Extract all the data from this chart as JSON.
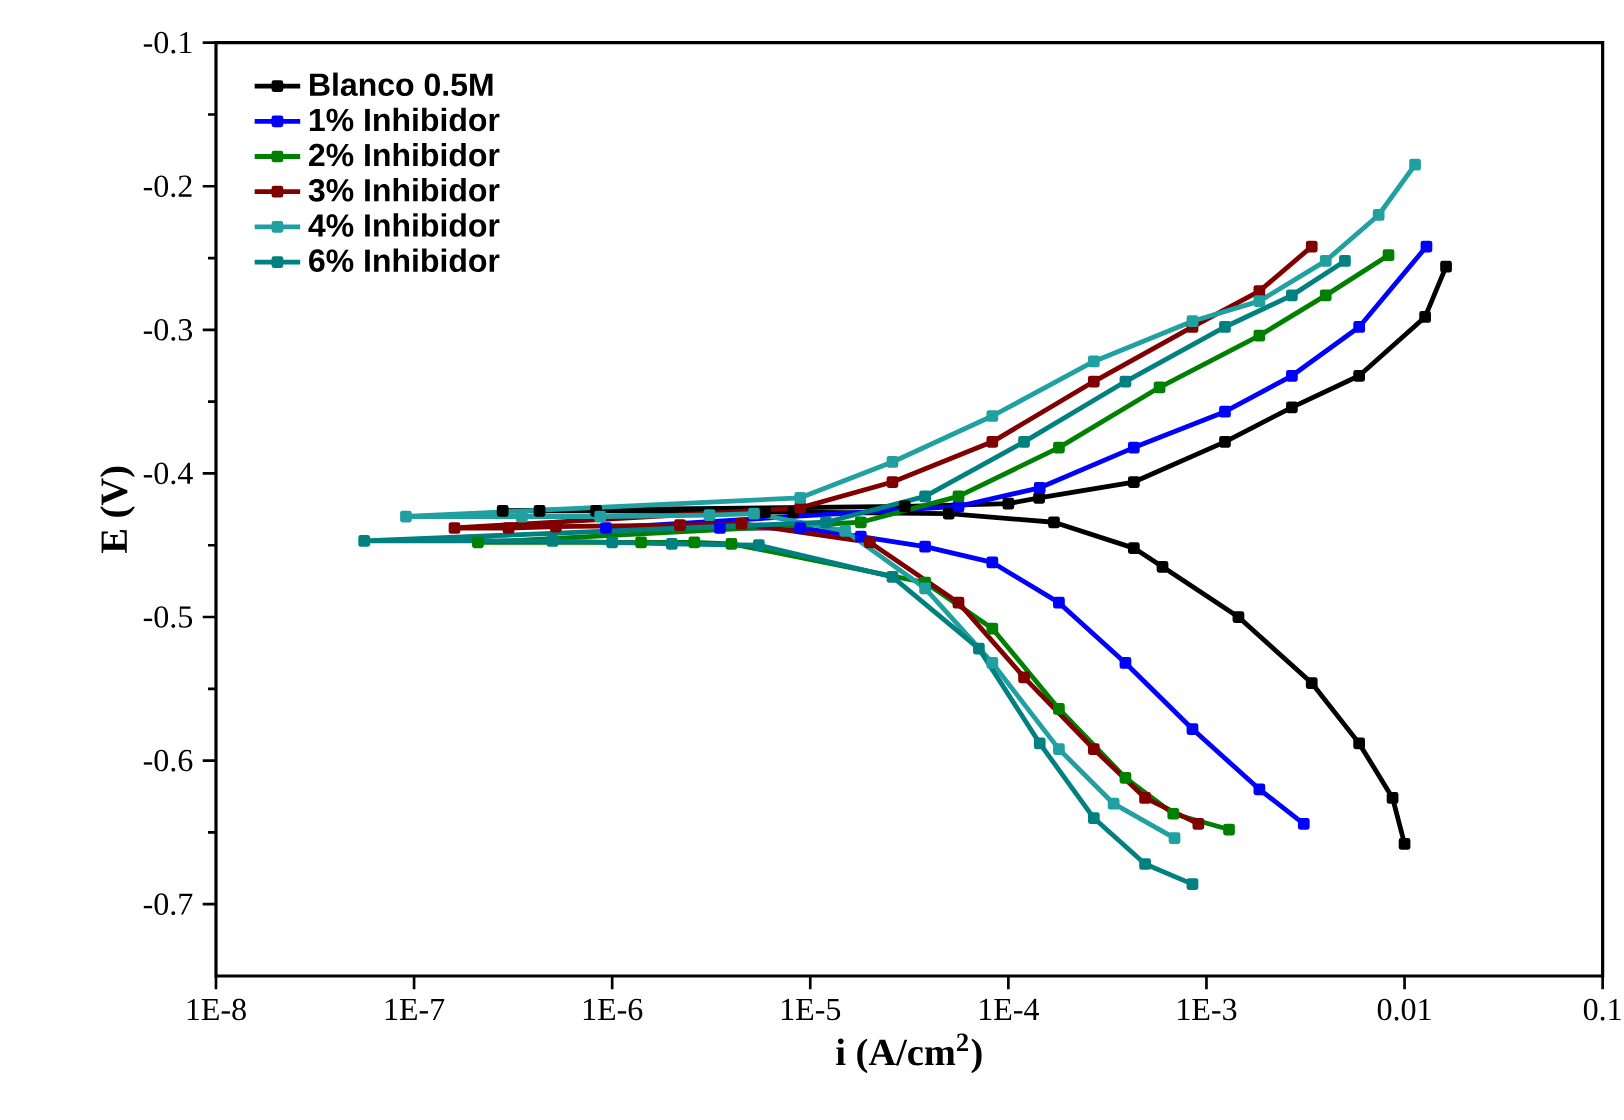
{
  "chart_data": {
    "type": "line",
    "xlabel": "i (A/cm$^{2}$)",
    "ylabel": "E (V)",
    "log": "x",
    "marker": "square",
    "line_style": "solid",
    "legend": "top left",
    "grid": false,
    "xlim": [
      1e-08,
      0.1
    ],
    "ylim": [
      -0.75,
      -0.1
    ],
    "xticks": [
      {
        "value": 1e-08,
        "label": "1E-8"
      },
      {
        "value": 1e-07,
        "label": "1E-7"
      },
      {
        "value": 1e-06,
        "label": "1E-6"
      },
      {
        "value": 1e-05,
        "label": "1E-5"
      },
      {
        "value": 0.0001,
        "label": "1E-4"
      },
      {
        "value": 0.001,
        "label": "1E-3"
      },
      0.01,
      0.1
    ],
    "yticks": [
      -0.1,
      -0.2,
      -0.3,
      -0.4,
      -0.5,
      -0.6,
      -0.7
    ],
    "series": [
      {
        "name": "Blanco 0.5M",
        "color": "#000000",
        "x": [
          0.01,
          0.0087,
          0.0059,
          0.0034,
          0.00145,
          0.0006,
          0.00043,
          0.00017,
          5e-05,
          8.2e-06,
          5.9e-06,
          8.3e-07,
          4.3e-07,
          2.8e-07,
          3e-05,
          0.0001,
          0.000143,
          0.00043,
          0.00124,
          0.0027,
          0.0059,
          0.0127,
          0.0162
        ],
        "values": [
          -0.658,
          -0.626,
          -0.588,
          -0.546,
          -0.5,
          -0.465,
          -0.452,
          -0.434,
          -0.428,
          -0.427,
          -0.427,
          -0.426,
          -0.426,
          -0.426,
          -0.423,
          -0.421,
          -0.417,
          -0.406,
          -0.378,
          -0.354,
          -0.332,
          -0.291,
          -0.256
        ]
      },
      {
        "name": "1% Inhibidor",
        "color": "#0000ff",
        "x": [
          0.0031,
          0.00185,
          0.00085,
          0.00039,
          0.00018,
          8.3e-05,
          3.8e-05,
          1.8e-05,
          8.9e-06,
          3.5e-06,
          9.3e-07,
          5.6e-05,
          0.000144,
          0.00043,
          0.00124,
          0.0027,
          0.0059,
          0.0129
        ],
        "values": [
          -0.644,
          -0.62,
          -0.578,
          -0.532,
          -0.49,
          -0.462,
          -0.451,
          -0.444,
          -0.438,
          -0.438,
          -0.438,
          -0.423,
          -0.41,
          -0.382,
          -0.357,
          -0.332,
          -0.298,
          -0.242
        ]
      },
      {
        "name": "2% Inhibidor",
        "color": "#008000",
        "x": [
          0.0013,
          0.00068,
          0.00039,
          0.00018,
          8.3e-05,
          3.8e-05,
          4e-06,
          2.6e-06,
          1.4e-06,
          2.1e-07,
          1.8e-05,
          5.6e-05,
          0.00018,
          0.00058,
          0.00185,
          0.004,
          0.0083
        ],
        "values": [
          -0.648,
          -0.637,
          -0.612,
          -0.564,
          -0.508,
          -0.476,
          -0.449,
          -0.448,
          -0.448,
          -0.448,
          -0.434,
          -0.416,
          -0.382,
          -0.34,
          -0.304,
          -0.276,
          -0.248
        ]
      },
      {
        "name": "3% Inhibidor",
        "color": "#800000",
        "x": [
          0.00091,
          0.00049,
          0.00027,
          0.00012,
          5.6e-05,
          2e-05,
          4.5e-06,
          2.2e-06,
          5.2e-07,
          3e-07,
          1.6e-07,
          8.9e-06,
          2.6e-05,
          8.3e-05,
          0.00027,
          0.00085,
          0.00185,
          0.0034
        ],
        "values": [
          -0.644,
          -0.626,
          -0.592,
          -0.542,
          -0.49,
          -0.448,
          -0.435,
          -0.436,
          -0.437,
          -0.438,
          -0.438,
          -0.424,
          -0.406,
          -0.378,
          -0.336,
          -0.298,
          -0.273,
          -0.242
        ]
      },
      {
        "name": "4% Inhibidor",
        "color": "#20a0a0",
        "x": [
          0.00069,
          0.00034,
          0.00018,
          8.3e-05,
          3.8e-05,
          1.5e-05,
          5.2e-06,
          3.1e-06,
          8.7e-07,
          3.5e-07,
          9.1e-08,
          8.9e-06,
          2.6e-05,
          8.3e-05,
          0.00027,
          0.00085,
          0.00185,
          0.004,
          0.0074,
          0.0113
        ],
        "values": [
          -0.654,
          -0.63,
          -0.592,
          -0.532,
          -0.48,
          -0.44,
          -0.428,
          -0.429,
          -0.43,
          -0.43,
          -0.43,
          -0.417,
          -0.392,
          -0.36,
          -0.322,
          -0.294,
          -0.28,
          -0.252,
          -0.22,
          -0.185
        ]
      },
      {
        "name": "6% Inhibidor",
        "color": "#008080",
        "x": [
          0.00085,
          0.00049,
          0.00027,
          0.000144,
          7.1e-05,
          2.6e-05,
          5.5e-06,
          2e-06,
          1e-06,
          5e-07,
          5.6e-08,
          1.2e-05,
          3.8e-05,
          0.00012,
          0.00039,
          0.00124,
          0.0027,
          0.005
        ],
        "values": [
          -0.686,
          -0.672,
          -0.64,
          -0.588,
          -0.522,
          -0.472,
          -0.45,
          -0.449,
          -0.448,
          -0.447,
          -0.447,
          -0.434,
          -0.416,
          -0.378,
          -0.336,
          -0.298,
          -0.276,
          -0.252
        ]
      }
    ]
  }
}
